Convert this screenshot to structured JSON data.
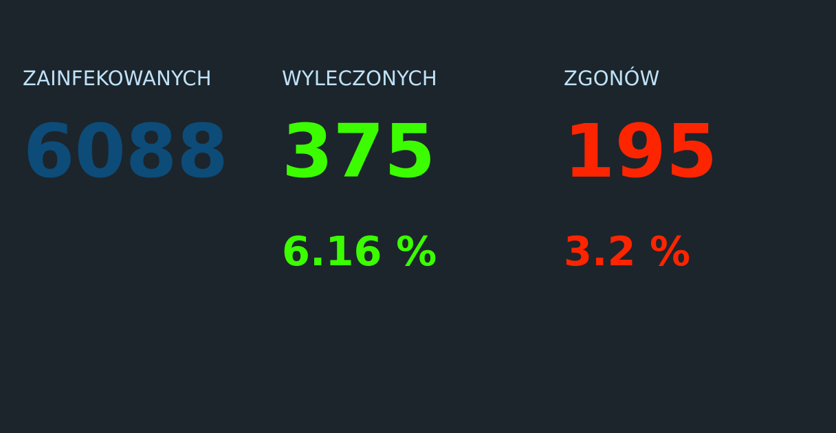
{
  "colors": {
    "background": "#1c252c",
    "label": "#bfe2f8",
    "infected": "#0d4c78",
    "recovered": "#3cfd00",
    "deaths": "#fc2500"
  },
  "stats": {
    "infected": {
      "label": "ZAINFEKOWANYCH",
      "count": "6088"
    },
    "recovered": {
      "label": "WYLECZONYCH",
      "count": "375",
      "percent": "6.16 %"
    },
    "deaths": {
      "label": "ZGONÓW",
      "count": "195",
      "percent": "3.2 %"
    }
  }
}
